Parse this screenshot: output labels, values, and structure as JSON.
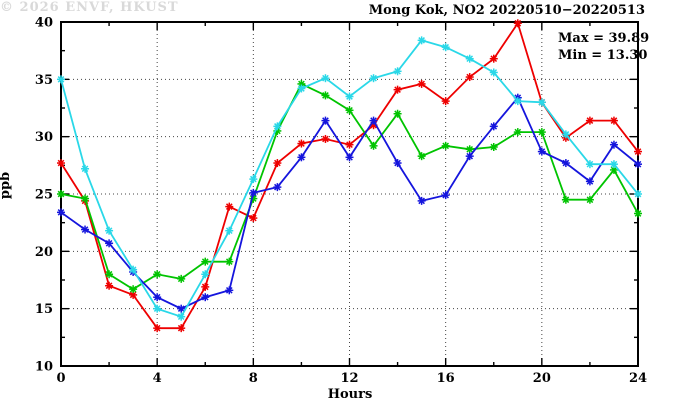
{
  "chart_data": {
    "type": "line",
    "title": "Mong Kok, NO2 20220510−20220513",
    "xlabel": "Hours",
    "ylabel": "ppb",
    "annotation_max": "Max = 39.89",
    "annotation_min": "Min = 13.30",
    "watermark": "© 2026 ENVF, HKUST",
    "xlim": [
      0,
      24
    ],
    "ylim": [
      10,
      40
    ],
    "xticks_major": [
      0,
      4,
      8,
      12,
      16,
      20,
      24
    ],
    "xtick_minor_step": 2,
    "yticks_major": [
      10,
      15,
      20,
      25,
      30,
      35,
      40
    ],
    "ytick_minor_step": 2.5,
    "grid": "dotted lines at interior major ticks, full border with inward ticks",
    "legend": "none",
    "x": [
      0,
      1,
      2,
      3,
      4,
      5,
      6,
      7,
      8,
      9,
      10,
      11,
      12,
      13,
      14,
      15,
      16,
      17,
      18,
      19,
      20,
      21,
      22,
      23,
      24
    ],
    "series": [
      {
        "name": "red",
        "color": "#ee0000",
        "values": [
          27.7,
          24.4,
          17.0,
          16.2,
          13.3,
          13.3,
          16.9,
          23.9,
          22.9,
          27.7,
          29.4,
          29.8,
          29.3,
          31.0,
          34.1,
          34.6,
          33.1,
          35.2,
          36.8,
          39.89,
          33.0,
          29.9,
          31.4,
          31.4,
          28.7
        ]
      },
      {
        "name": "green",
        "color": "#00c400",
        "values": [
          25.0,
          24.6,
          18.0,
          16.7,
          18.0,
          17.6,
          19.1,
          19.1,
          24.6,
          30.5,
          34.6,
          33.6,
          32.3,
          29.2,
          32.0,
          28.3,
          29.2,
          28.9,
          29.1,
          30.4,
          30.4,
          24.5,
          24.5,
          27.1,
          23.3
        ]
      },
      {
        "name": "blue",
        "color": "#1515dd",
        "values": [
          23.4,
          21.9,
          20.7,
          18.2,
          16.0,
          15.0,
          16.0,
          16.6,
          25.1,
          25.6,
          28.2,
          31.4,
          28.2,
          31.4,
          27.7,
          24.4,
          24.9,
          28.3,
          30.9,
          33.4,
          28.7,
          27.7,
          26.1,
          29.3,
          27.6
        ]
      },
      {
        "name": "cyan",
        "color": "#2ad8e8",
        "values": [
          35.0,
          27.2,
          21.8,
          18.4,
          15.0,
          14.3,
          18.0,
          21.8,
          26.3,
          30.9,
          34.2,
          35.1,
          33.5,
          35.1,
          35.7,
          38.4,
          37.8,
          36.8,
          35.6,
          33.1,
          33.0,
          30.2,
          27.6,
          27.6,
          25.0
        ]
      }
    ]
  }
}
